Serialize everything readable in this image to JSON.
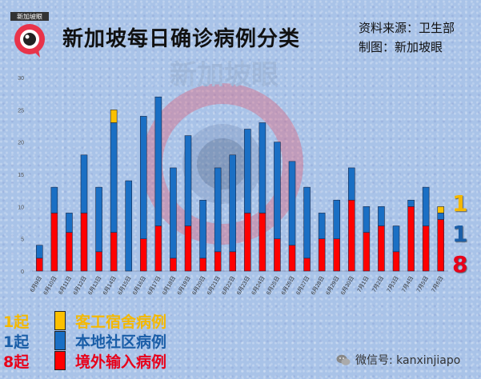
{
  "title": "新加坡每日确诊病例分类",
  "source_line": "资料来源：卫生部",
  "credit_line": "制图：新加坡眼",
  "logo_text": "新加坡眼",
  "watermark_text": "新加坡眼",
  "wechat_text": "微信号: kanxinjiapo",
  "colors": {
    "dormitory": "#fcc000",
    "community": "#1a6fc4",
    "imported": "#ff0000"
  },
  "legend": [
    {
      "count": "1起",
      "label": "客工宿舍病例",
      "color": "#f5b800",
      "swatch": "#fcc000"
    },
    {
      "count": "1起",
      "label": "本地社区病例",
      "color": "#1a5ea8",
      "swatch": "#1a6fc4"
    },
    {
      "count": "8起",
      "label": "境外输入病例",
      "color": "#e8001a",
      "swatch": "#ff0000"
    }
  ],
  "latest_numbers": {
    "dormitory": "1",
    "community": "1",
    "imported": "8"
  },
  "chart_data": {
    "type": "bar",
    "stacked": true,
    "title": "新加坡每日确诊病例分类",
    "xlabel": "",
    "ylabel": "",
    "ylim": [
      0,
      30
    ],
    "yticks": [
      0,
      5,
      10,
      15,
      20,
      25,
      30
    ],
    "grid": false,
    "categories": [
      "6月9日",
      "6月10日",
      "6月11日",
      "6月12日",
      "6月13日",
      "6月14日",
      "6月15日",
      "6月16日",
      "6月17日",
      "6月18日",
      "6月19日",
      "6月20日",
      "6月21日",
      "6月22日",
      "6月23日",
      "6月24日",
      "6月25日",
      "6月26日",
      "6月27日",
      "6月28日",
      "6月29日",
      "6月30日",
      "7月1日",
      "7月2日",
      "7月3日",
      "7月4日",
      "7月5日",
      "7月6日"
    ],
    "series": [
      {
        "name": "境外输入病例",
        "color": "#ff0000",
        "values": [
          2,
          9,
          6,
          9,
          3,
          6,
          0,
          5,
          7,
          2,
          7,
          2,
          3,
          3,
          9,
          9,
          5,
          4,
          2,
          5,
          5,
          11,
          6,
          7,
          3,
          10,
          7,
          8
        ]
      },
      {
        "name": "本地社区病例",
        "color": "#1a6fc4",
        "values": [
          2,
          4,
          3,
          9,
          10,
          17,
          14,
          19,
          20,
          14,
          14,
          9,
          13,
          15,
          13,
          14,
          15,
          13,
          11,
          4,
          6,
          5,
          4,
          3,
          4,
          1,
          6,
          1
        ]
      },
      {
        "name": "客工宿舍病例",
        "color": "#fcc000",
        "values": [
          0,
          0,
          0,
          0,
          0,
          2,
          0,
          0,
          0,
          0,
          0,
          0,
          0,
          0,
          0,
          0,
          0,
          0,
          0,
          0,
          0,
          0,
          0,
          0,
          0,
          0,
          0,
          1
        ]
      }
    ]
  }
}
